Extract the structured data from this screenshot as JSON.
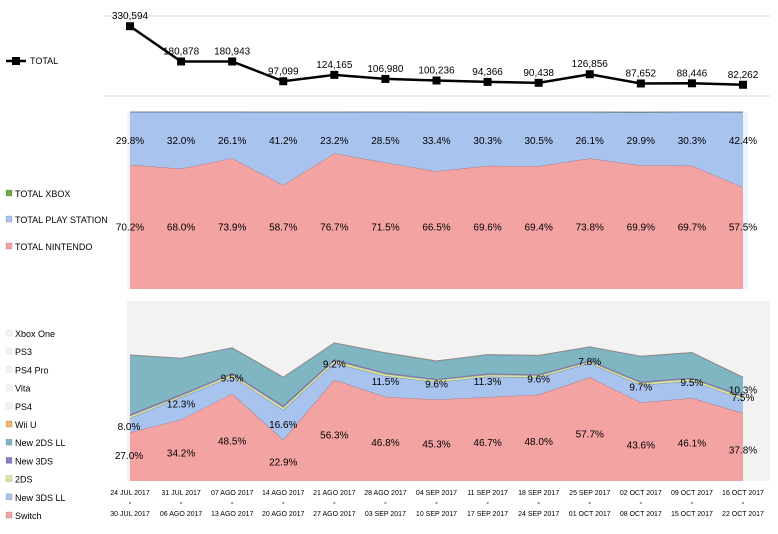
{
  "chart_data": [
    {
      "type": "line",
      "series": [
        {
          "name": "TOTAL",
          "values": [
            330594,
            180878,
            180943,
            97099,
            124165,
            106980,
            100236,
            94366,
            90438,
            126856,
            87652,
            88446,
            82262
          ],
          "labels": [
            "330,594",
            "180,878",
            "180,943",
            "97,099",
            "124,165",
            "106,980",
            "100,236",
            "94,366",
            "90,438",
            "126,856",
            "87,652",
            "88,446",
            "82,262"
          ]
        }
      ],
      "ylim": [
        60000,
        340000
      ]
    },
    {
      "type": "area",
      "stacked": "percent",
      "series": [
        {
          "name": "TOTAL NINTENDO",
          "color": "#f4a3a3",
          "values": [
            70.2,
            68.0,
            73.9,
            58.7,
            76.7,
            71.5,
            66.5,
            69.6,
            69.4,
            73.8,
            69.9,
            69.7,
            57.5
          ],
          "labels": [
            "70.2%",
            "68.0%",
            "73.9%",
            "58.7%",
            "76.7%",
            "71.5%",
            "66.5%",
            "69.6%",
            "69.4%",
            "73.8%",
            "69.9%",
            "69.7%",
            "57.5%"
          ]
        },
        {
          "name": "TOTAL PLAY STATION",
          "color": "#a9c3ef",
          "values": [
            29.8,
            32.0,
            26.1,
            41.2,
            23.2,
            28.5,
            33.4,
            30.3,
            30.5,
            26.1,
            29.9,
            30.3,
            42.4
          ],
          "labels": [
            "29.8%",
            "32.0%",
            "26.1%",
            "41.2%",
            "23.2%",
            "28.5%",
            "33.4%",
            "30.3%",
            "30.5%",
            "26.1%",
            "29.9%",
            "30.3%",
            "42.4%"
          ]
        },
        {
          "name": "TOTAL XBOX",
          "color": "#70ad47",
          "values": [
            0,
            0,
            0,
            0.1,
            0.1,
            0,
            0.1,
            0.1,
            0.1,
            0.1,
            0.2,
            0,
            0.1
          ]
        }
      ],
      "ylim": [
        0,
        100
      ]
    },
    {
      "type": "area",
      "stacked": "percent",
      "series": [
        {
          "name": "Switch",
          "color": "#f4a3a3",
          "values": [
            27.0,
            34.2,
            48.5,
            22.9,
            56.3,
            46.8,
            45.3,
            46.7,
            48.0,
            57.7,
            43.6,
            46.1,
            37.8
          ],
          "labels": [
            "27.0%",
            "34.2%",
            "48.5%",
            "22.9%",
            "56.3%",
            "46.8%",
            "45.3%",
            "46.7%",
            "48.0%",
            "57.7%",
            "43.6%",
            "46.1%",
            "37.8%"
          ]
        },
        {
          "name": "New 3DS LL",
          "color": "#a9c3ef",
          "values": [
            8.0,
            12.3,
            9.5,
            16.6,
            9.2,
            11.5,
            9.6,
            11.3,
            9.6,
            7.8,
            9.7,
            9.5,
            7.5
          ],
          "labels": [
            "8.0%",
            "12.3%",
            "9.5%",
            "16.6%",
            "9.2%",
            "11.5%",
            "9.6%",
            "11.3%",
            "9.6%",
            "7.8%",
            "9.7%",
            "9.5%",
            "7.5%"
          ]
        },
        {
          "name": "2DS",
          "color": "#d7e89c",
          "values": [
            1.2,
            1.0,
            1.3,
            1.5,
            1.4,
            1.2,
            1.2,
            1.1,
            1.1,
            0.9,
            1.3,
            1.2,
            1.4
          ]
        },
        {
          "name": "New 3DS",
          "color": "#8e7cc3",
          "values": [
            0.8,
            0.7,
            0.7,
            1.0,
            0.8,
            0.7,
            0.6,
            0.6,
            0.6,
            0.6,
            0.7,
            0.6,
            0.7
          ]
        },
        {
          "name": "New 2DS LL",
          "color": "#7fb6c2",
          "values": [
            33.0,
            20.0,
            14.0,
            15.6,
            9.0,
            11.0,
            10.0,
            10.5,
            10.5,
            7.5,
            14.0,
            14.0,
            10.3
          ],
          "labels": [
            "",
            "",
            "",
            "",
            "",
            "",
            "",
            "",
            "",
            "",
            "",
            "",
            "10.3%"
          ]
        },
        {
          "name": "Wii U",
          "color": "#f7b26b",
          "values": [
            0.3,
            0.3,
            0.3,
            0.4,
            0.3,
            0.3,
            0.3,
            0.3,
            0.3,
            0.3,
            0.3,
            0.3,
            0.3
          ]
        },
        {
          "name": "PS4",
          "color": "#f2f2f2",
          "values": [
            24.0,
            25.0,
            20.0,
            33.0,
            18.0,
            22.0,
            26.0,
            23.0,
            23.5,
            20.0,
            23.0,
            23.0,
            34.0
          ]
        },
        {
          "name": "Vita",
          "color": "#f2f2f2",
          "values": [
            2.0,
            2.1,
            2.2,
            2.4,
            1.8,
            2.3,
            2.5,
            2.4,
            2.3,
            1.9,
            2.4,
            2.2,
            3.0
          ]
        },
        {
          "name": "PS4 Pro",
          "color": "#f2f2f2",
          "values": [
            3.3,
            3.9,
            3.0,
            5.9,
            2.7,
            3.7,
            4.2,
            3.9,
            3.8,
            3.0,
            4.0,
            3.7,
            4.7
          ]
        },
        {
          "name": "PS3",
          "color": "#f2f2f2",
          "values": [
            0.4,
            0.5,
            0.5,
            0.7,
            0.5,
            0.5,
            0.3,
            0.2,
            0.3,
            0.3,
            1.0,
            0.4,
            0.3
          ]
        },
        {
          "name": "Xbox One",
          "color": "#f2f2f2",
          "values": [
            0,
            0,
            0,
            0,
            0,
            0,
            0,
            0,
            0,
            0,
            0,
            0,
            0
          ]
        }
      ],
      "ylim": [
        0,
        100
      ]
    }
  ],
  "legend_top": [
    "TOTAL"
  ],
  "legend_mid": [
    "TOTAL XBOX",
    "TOTAL PLAY STATION",
    "TOTAL NINTENDO"
  ],
  "legend_bottom": [
    "Xbox One",
    "PS3",
    "PS4 Pro",
    "Vita",
    "PS4",
    "Wii U",
    "New 2DS LL",
    "New 3DS",
    "2DS",
    "New 3DS LL",
    "Switch"
  ],
  "weeks": [
    {
      "from": "24 JUL 2017",
      "to": "30 JUL 2017"
    },
    {
      "from": "31 JUL 2017",
      "to": "06 AGO 2017"
    },
    {
      "from": "07 AGO 2017",
      "to": "13 AGO 2017"
    },
    {
      "from": "14 AGO 2017",
      "to": "20 AGO 2017"
    },
    {
      "from": "21 AGO 2017",
      "to": "27 AGO 2017"
    },
    {
      "from": "28 AGO 2017",
      "to": "03 SEP 2017"
    },
    {
      "from": "04 SEP 2017",
      "to": "10 SEP 2017"
    },
    {
      "from": "11 SEP 2017",
      "to": "17 SEP 2017"
    },
    {
      "from": "18 SEP 2017",
      "to": "24 SEP 2017"
    },
    {
      "from": "25 SEP 2017",
      "to": "01 OCT 2017"
    },
    {
      "from": "02 OCT 2017",
      "to": "08 OCT 2017"
    },
    {
      "from": "09 OCT 2017",
      "to": "15 OCT 2017"
    },
    {
      "from": "16 OCT 2017",
      "to": "22 OCT 2017"
    }
  ]
}
